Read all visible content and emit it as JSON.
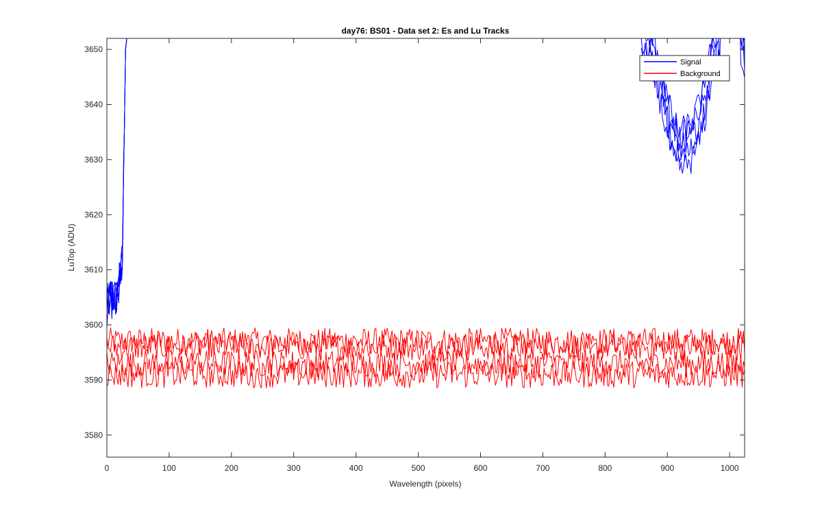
{
  "chart_data": {
    "type": "line",
    "title": "day76: BS01 - Data set 2: Es and Lu Tracks",
    "xlabel": "Wavelength (pixels)",
    "ylabel": "LuTop (ADU)",
    "xlim": [
      0,
      1024
    ],
    "ylim": [
      3576,
      3652
    ],
    "xticks": [
      0,
      100,
      200,
      300,
      400,
      500,
      600,
      700,
      800,
      900,
      1000
    ],
    "yticks": [
      3580,
      3590,
      3600,
      3610,
      3620,
      3630,
      3640,
      3650
    ],
    "grid": false,
    "legend": {
      "position": "top-right",
      "entries": [
        "Signal",
        "Background"
      ]
    },
    "series": [
      {
        "name": "Signal",
        "color": "#0000ff",
        "x": [
          0,
          5,
          10,
          15,
          20,
          25,
          28,
          30,
          32,
          860,
          870,
          880,
          890,
          900,
          910,
          920,
          930,
          940,
          950,
          960,
          970,
          980,
          1020,
          1024
        ],
        "values": [
          3603,
          3606,
          3604,
          3605,
          3608,
          3612,
          3635,
          3650,
          3652,
          3652,
          3650,
          3648,
          3644,
          3638,
          3634,
          3632,
          3633,
          3634,
          3637,
          3641,
          3648,
          3652,
          3652,
          3650
        ]
      },
      {
        "name": "Background",
        "color": "#ff0000",
        "x": [
          0,
          100,
          200,
          300,
          400,
          500,
          600,
          700,
          800,
          900,
          1000,
          1024
        ],
        "values": [
          3597,
          3597,
          3597,
          3597,
          3597,
          3597,
          3597,
          3597,
          3597,
          3597,
          3597,
          3597
        ],
        "band_means": [
          3597,
          3596,
          3593,
          3591
        ],
        "noise_amplitude": 2.5
      }
    ]
  }
}
